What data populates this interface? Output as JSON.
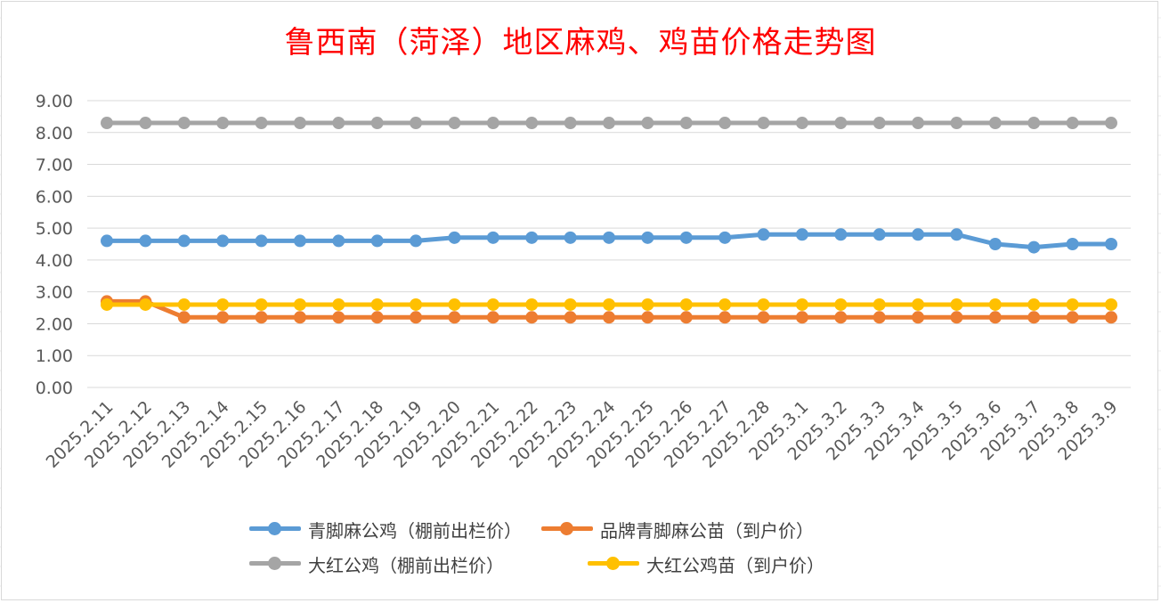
{
  "chart_data": {
    "type": "line",
    "title": "鲁西南（菏泽）地区麻鸡、鸡苗价格走势图",
    "ylim": [
      0,
      9
    ],
    "yticks": [
      "9.00",
      "8.00",
      "7.00",
      "6.00",
      "5.00",
      "4.00",
      "3.00",
      "2.00",
      "1.00",
      "0.00"
    ],
    "grid": true,
    "legend_position": "bottom",
    "categories": [
      "2025.2.11",
      "2025.2.12",
      "2025.2.13",
      "2025.2.14",
      "2025.2.15",
      "2025.2.16",
      "2025.2.17",
      "2025.2.18",
      "2025.2.19",
      "2025.2.20",
      "2025.2.21",
      "2025.2.22",
      "2025.2.23",
      "2025.2.24",
      "2025.2.25",
      "2025.2.26",
      "2025.2.27",
      "2025.2.28",
      "2025.3.1",
      "2025.3.2",
      "2025.3.3",
      "2025.3.4",
      "2025.3.5",
      "2025.3.6",
      "2025.3.7",
      "2025.3.8",
      "2025.3.9"
    ],
    "series": [
      {
        "name": "青脚麻公鸡（棚前出栏价）",
        "color": "#5b9bd5",
        "values": [
          4.6,
          4.6,
          4.6,
          4.6,
          4.6,
          4.6,
          4.6,
          4.6,
          4.6,
          4.7,
          4.7,
          4.7,
          4.7,
          4.7,
          4.7,
          4.7,
          4.7,
          4.8,
          4.8,
          4.8,
          4.8,
          4.8,
          4.8,
          4.5,
          4.4,
          4.5,
          4.5
        ]
      },
      {
        "name": "品牌青脚麻公苗（到户价）",
        "color": "#ed7d31",
        "values": [
          2.7,
          2.7,
          2.2,
          2.2,
          2.2,
          2.2,
          2.2,
          2.2,
          2.2,
          2.2,
          2.2,
          2.2,
          2.2,
          2.2,
          2.2,
          2.2,
          2.2,
          2.2,
          2.2,
          2.2,
          2.2,
          2.2,
          2.2,
          2.2,
          2.2,
          2.2,
          2.2
        ]
      },
      {
        "name": "大红公鸡（棚前出栏价）",
        "color": "#a5a5a5",
        "values": [
          8.3,
          8.3,
          8.3,
          8.3,
          8.3,
          8.3,
          8.3,
          8.3,
          8.3,
          8.3,
          8.3,
          8.3,
          8.3,
          8.3,
          8.3,
          8.3,
          8.3,
          8.3,
          8.3,
          8.3,
          8.3,
          8.3,
          8.3,
          8.3,
          8.3,
          8.3,
          8.3
        ]
      },
      {
        "name": "大红公鸡苗（到户价）",
        "color": "#ffc000",
        "values": [
          2.6,
          2.6,
          2.6,
          2.6,
          2.6,
          2.6,
          2.6,
          2.6,
          2.6,
          2.6,
          2.6,
          2.6,
          2.6,
          2.6,
          2.6,
          2.6,
          2.6,
          2.6,
          2.6,
          2.6,
          2.6,
          2.6,
          2.6,
          2.6,
          2.6,
          2.6,
          2.6
        ]
      }
    ]
  },
  "draw_order": [
    2,
    0,
    1,
    3
  ],
  "colors": {
    "title": "#ff0000",
    "grid": "#d9d9d9",
    "tick_text": "#595959"
  }
}
